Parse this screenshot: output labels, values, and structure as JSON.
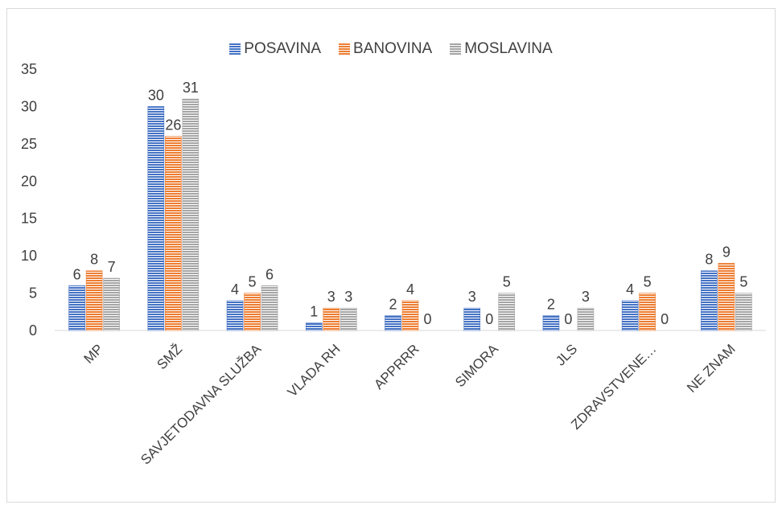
{
  "chart_data": {
    "type": "bar",
    "categories": [
      "MP",
      "SMŽ",
      "SAVJETODAVNA SLUŽBA",
      "VLADA RH",
      "APPRRR",
      "SIMORA",
      "JLS",
      "ZDRAVSTVENE…",
      "NE ZNAM"
    ],
    "series": [
      {
        "name": "POSAVINA",
        "values": [
          6,
          30,
          4,
          1,
          2,
          3,
          2,
          4,
          8
        ],
        "color": "#4472c4"
      },
      {
        "name": "BANOVINA",
        "values": [
          8,
          26,
          5,
          3,
          4,
          0,
          0,
          5,
          9
        ],
        "color": "#ed7d31"
      },
      {
        "name": "MOSLAVINA",
        "values": [
          7,
          31,
          6,
          3,
          0,
          5,
          3,
          0,
          5
        ],
        "color": "#a5a5a5"
      }
    ],
    "ylim": [
      0,
      35
    ],
    "yticks": [
      0,
      5,
      10,
      15,
      20,
      25,
      30,
      35
    ],
    "grid": false,
    "legend_position": "top",
    "title": "",
    "xlabel": "",
    "ylabel": ""
  }
}
